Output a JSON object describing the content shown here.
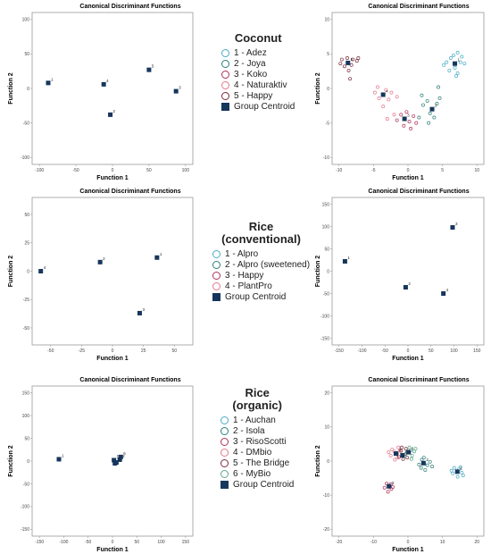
{
  "legends": [
    {
      "title": "Coconut",
      "items": [
        {
          "label": "1 - Adez",
          "color": "#4bacc6"
        },
        {
          "label": "2 - Joya",
          "color": "#2e7f7a"
        },
        {
          "label": "3 - Koko",
          "color": "#b0315a"
        },
        {
          "label": "4 - Naturaktiv",
          "color": "#e6798f"
        },
        {
          "label": "5 - Happy",
          "color": "#7a2d3c"
        }
      ],
      "centroid": "Group Centroid",
      "centroid_color": "#16365c"
    },
    {
      "title": "Rice\n(conventional)",
      "items": [
        {
          "label": "1 - Alpro",
          "color": "#4bacc6"
        },
        {
          "label": "2 - Alpro (sweetened)",
          "color": "#2e7f7a"
        },
        {
          "label": "3 - Happy",
          "color": "#b0315a"
        },
        {
          "label": "4 - PlantPro",
          "color": "#e6798f"
        }
      ],
      "centroid": "Group Centroid",
      "centroid_color": "#16365c"
    },
    {
      "title": "Rice\n(organic)",
      "items": [
        {
          "label": "1 - Auchan",
          "color": "#4bacc6"
        },
        {
          "label": "2 - Isola",
          "color": "#2e7f7a"
        },
        {
          "label": "3 - RisoScotti",
          "color": "#b0315a"
        },
        {
          "label": "4 - DMbio",
          "color": "#e6798f"
        },
        {
          "label": "5 - The Bridge",
          "color": "#7a2d3c"
        },
        {
          "label": "6 - MyBio",
          "color": "#5ba88a"
        }
      ],
      "centroid": "Group Centroid",
      "centroid_color": "#16365c"
    }
  ],
  "chart_data": [
    {
      "type": "scatter",
      "title": "Canonical Discriminant Functions",
      "xlabel": "Function 1",
      "ylabel": "Function 2",
      "xlim": [
        -110,
        110
      ],
      "ylim": [
        -110,
        110
      ],
      "xticks": [
        -100,
        -50,
        0,
        50,
        100
      ],
      "yticks": [
        -100,
        -50,
        0,
        50,
        100
      ],
      "centroids": [
        {
          "label": "1",
          "x": -88,
          "y": 8
        },
        {
          "label": "2",
          "x": -3,
          "y": -38
        },
        {
          "label": "3",
          "x": 87,
          "y": -4
        },
        {
          "label": "4",
          "x": -12,
          "y": 6
        },
        {
          "label": "5",
          "x": 50,
          "y": 27
        }
      ],
      "points": []
    },
    {
      "type": "scatter",
      "title": "Canonical Discriminant Functions",
      "xlabel": "Function 1",
      "ylabel": "Function 2",
      "xlim": [
        -11,
        11
      ],
      "ylim": [
        -11,
        11
      ],
      "xticks": [
        -10,
        -5,
        0,
        5,
        10
      ],
      "yticks": [
        -10,
        -5,
        0,
        5,
        10
      ],
      "centroids": [
        {
          "label": "1",
          "x": 6.8,
          "y": 3.6
        },
        {
          "label": "2",
          "x": 3.5,
          "y": -3.0
        },
        {
          "label": "3",
          "x": -0.5,
          "y": -4.4
        },
        {
          "label": "4",
          "x": -3.6,
          "y": -0.9
        },
        {
          "label": "5",
          "x": -8.7,
          "y": 3.7
        }
      ],
      "points": [
        {
          "group": 1,
          "x": 7.2,
          "y": 5.2
        },
        {
          "group": 1,
          "x": 6.2,
          "y": 4.4
        },
        {
          "group": 1,
          "x": 7.8,
          "y": 4.6
        },
        {
          "group": 1,
          "x": 5.6,
          "y": 3.8
        },
        {
          "group": 1,
          "x": 6.8,
          "y": 3.0
        },
        {
          "group": 1,
          "x": 7.6,
          "y": 3.8
        },
        {
          "group": 1,
          "x": 8.2,
          "y": 3.6
        },
        {
          "group": 1,
          "x": 6.0,
          "y": 2.6
        },
        {
          "group": 1,
          "x": 7.2,
          "y": 2.2
        },
        {
          "group": 1,
          "x": 6.6,
          "y": 4.8
        },
        {
          "group": 1,
          "x": 5.2,
          "y": 3.4
        },
        {
          "group": 1,
          "x": 7.0,
          "y": 1.8
        },
        {
          "group": 2,
          "x": 2.2,
          "y": -2.4
        },
        {
          "group": 2,
          "x": 3.2,
          "y": -3.6
        },
        {
          "group": 2,
          "x": 4.2,
          "y": -2.2
        },
        {
          "group": 2,
          "x": 3.8,
          "y": -4.2
        },
        {
          "group": 2,
          "x": 4.6,
          "y": -1.4
        },
        {
          "group": 2,
          "x": 2.8,
          "y": -1.8
        },
        {
          "group": 2,
          "x": 1.6,
          "y": -4.2
        },
        {
          "group": 2,
          "x": 3.0,
          "y": -5.0
        },
        {
          "group": 2,
          "x": 4.4,
          "y": 0.2
        },
        {
          "group": 2,
          "x": 2.0,
          "y": -1.0
        },
        {
          "group": 3,
          "x": -1.0,
          "y": -3.8
        },
        {
          "group": 3,
          "x": 0.2,
          "y": -4.8
        },
        {
          "group": 3,
          "x": -0.6,
          "y": -5.4
        },
        {
          "group": 3,
          "x": 0.8,
          "y": -4.0
        },
        {
          "group": 3,
          "x": -1.6,
          "y": -4.6
        },
        {
          "group": 3,
          "x": 0.4,
          "y": -5.8
        },
        {
          "group": 3,
          "x": -0.2,
          "y": -3.4
        },
        {
          "group": 3,
          "x": 1.2,
          "y": -5.0
        },
        {
          "group": 4,
          "x": -4.4,
          "y": 0.2
        },
        {
          "group": 4,
          "x": -3.2,
          "y": -0.2
        },
        {
          "group": 4,
          "x": -2.8,
          "y": -1.6
        },
        {
          "group": 4,
          "x": -4.2,
          "y": -1.4
        },
        {
          "group": 4,
          "x": -2.4,
          "y": -0.6
        },
        {
          "group": 4,
          "x": -3.6,
          "y": -2.6
        },
        {
          "group": 4,
          "x": -2.0,
          "y": -3.8
        },
        {
          "group": 4,
          "x": -3.0,
          "y": -4.4
        },
        {
          "group": 4,
          "x": -4.8,
          "y": -0.6
        },
        {
          "group": 4,
          "x": -1.6,
          "y": -1.2
        },
        {
          "group": 5,
          "x": -9.6,
          "y": 4.2
        },
        {
          "group": 5,
          "x": -8.8,
          "y": 4.4
        },
        {
          "group": 5,
          "x": -8.0,
          "y": 4.2
        },
        {
          "group": 5,
          "x": -9.2,
          "y": 3.2
        },
        {
          "group": 5,
          "x": -8.2,
          "y": 3.4
        },
        {
          "group": 5,
          "x": -7.4,
          "y": 4.0
        },
        {
          "group": 5,
          "x": -8.6,
          "y": 2.6
        },
        {
          "group": 5,
          "x": -9.8,
          "y": 3.6
        },
        {
          "group": 5,
          "x": -7.2,
          "y": 4.4
        },
        {
          "group": 5,
          "x": -8.4,
          "y": 1.4
        }
      ]
    },
    {
      "type": "scatter",
      "title": "Canonical Discriminant Functions",
      "xlabel": "Function 1",
      "ylabel": "Function 2",
      "xlim": [
        -65,
        65
      ],
      "ylim": [
        -65,
        65
      ],
      "xticks": [
        -50,
        -25,
        0,
        25,
        50
      ],
      "yticks": [
        -50,
        -25,
        0,
        25,
        50
      ],
      "centroids": [
        {
          "label": "1",
          "x": 36,
          "y": 12
        },
        {
          "label": "2",
          "x": -10,
          "y": 8
        },
        {
          "label": "3",
          "x": 22,
          "y": -37
        },
        {
          "label": "4",
          "x": -58,
          "y": 0
        }
      ],
      "points": []
    },
    {
      "type": "scatter",
      "title": "Canonical Discriminant Functions",
      "xlabel": "Function 1",
      "ylabel": "Function 2",
      "xlim": [
        -165,
        165
      ],
      "ylim": [
        -165,
        165
      ],
      "xticks": [
        -150,
        -100,
        -50,
        0,
        50,
        100,
        150
      ],
      "yticks": [
        -150,
        -100,
        -50,
        0,
        50,
        100,
        150
      ],
      "centroids": [
        {
          "label": "1",
          "x": -137,
          "y": 22
        },
        {
          "label": "2",
          "x": -5,
          "y": -36
        },
        {
          "label": "3",
          "x": 97,
          "y": 98
        },
        {
          "label": "4",
          "x": 77,
          "y": -50
        }
      ],
      "points": []
    },
    {
      "type": "scatter",
      "title": "Canonical Discriminant Functions",
      "xlabel": "Function 1",
      "ylabel": "Function 2",
      "xlim": [
        -165,
        165
      ],
      "ylim": [
        -165,
        165
      ],
      "xticks": [
        -150,
        -100,
        -50,
        0,
        50,
        100,
        150
      ],
      "yticks": [
        -150,
        -100,
        -50,
        0,
        50,
        100,
        150
      ],
      "centroids": [
        {
          "label": "1",
          "x": -110,
          "y": 4
        },
        {
          "label": "2",
          "x": 15,
          "y": 3
        },
        {
          "label": "3",
          "x": 5,
          "y": -5
        },
        {
          "label": "4",
          "x": 8,
          "y": -3
        },
        {
          "label": "5",
          "x": 3,
          "y": 2
        },
        {
          "label": "6",
          "x": 17,
          "y": 9
        }
      ],
      "points": []
    },
    {
      "type": "scatter",
      "title": "Canonical Discriminant Functions",
      "xlabel": "Function 1",
      "ylabel": "Function 2",
      "xlim": [
        -22,
        22
      ],
      "ylim": [
        -22,
        22
      ],
      "xticks": [
        -20,
        -10,
        0,
        10,
        20
      ],
      "yticks": [
        -20,
        -10,
        0,
        10,
        20
      ],
      "centroids": [
        {
          "label": "1",
          "x": 14.3,
          "y": -3.1
        },
        {
          "label": "2",
          "x": 4.5,
          "y": -0.6
        },
        {
          "label": "3",
          "x": -5.5,
          "y": -7.4
        },
        {
          "label": "4",
          "x": -3.5,
          "y": 2.2
        },
        {
          "label": "5",
          "x": -1.6,
          "y": 1.7
        },
        {
          "label": "6",
          "x": 0.2,
          "y": 2.6
        }
      ],
      "points": [
        {
          "group": 1,
          "x": 13.4,
          "y": -2.0
        },
        {
          "group": 1,
          "x": 14.8,
          "y": -2.4
        },
        {
          "group": 1,
          "x": 15.6,
          "y": -3.4
        },
        {
          "group": 1,
          "x": 13.0,
          "y": -3.6
        },
        {
          "group": 1,
          "x": 14.4,
          "y": -4.6
        },
        {
          "group": 1,
          "x": 15.2,
          "y": -1.8
        },
        {
          "group": 1,
          "x": 12.6,
          "y": -2.8
        },
        {
          "group": 1,
          "x": 16.0,
          "y": -4.2
        },
        {
          "group": 2,
          "x": 4.0,
          "y": 0.4
        },
        {
          "group": 2,
          "x": 5.6,
          "y": -1.2
        },
        {
          "group": 2,
          "x": 3.8,
          "y": -2.0
        },
        {
          "group": 2,
          "x": 6.4,
          "y": -0.2
        },
        {
          "group": 2,
          "x": 5.0,
          "y": -2.6
        },
        {
          "group": 2,
          "x": 3.2,
          "y": -1.0
        },
        {
          "group": 2,
          "x": 7.0,
          "y": -1.6
        },
        {
          "group": 2,
          "x": 4.6,
          "y": 1.0
        },
        {
          "group": 3,
          "x": -6.2,
          "y": -6.6
        },
        {
          "group": 3,
          "x": -4.8,
          "y": -8.2
        },
        {
          "group": 3,
          "x": -5.8,
          "y": -9.0
        },
        {
          "group": 3,
          "x": -6.8,
          "y": -7.8
        },
        {
          "group": 3,
          "x": -5.0,
          "y": -6.8
        },
        {
          "group": 3,
          "x": -4.4,
          "y": -7.6
        },
        {
          "group": 4,
          "x": -4.6,
          "y": 3.4
        },
        {
          "group": 4,
          "x": -3.0,
          "y": 1.0
        },
        {
          "group": 4,
          "x": -5.0,
          "y": 1.6
        },
        {
          "group": 4,
          "x": -2.4,
          "y": 3.0
        },
        {
          "group": 4,
          "x": -3.8,
          "y": 0.4
        },
        {
          "group": 4,
          "x": -5.6,
          "y": 2.6
        },
        {
          "group": 4,
          "x": -2.8,
          "y": 4.0
        },
        {
          "group": 4,
          "x": -4.0,
          "y": 2.8
        },
        {
          "group": 5,
          "x": -2.0,
          "y": 3.0
        },
        {
          "group": 5,
          "x": -0.8,
          "y": 2.0
        },
        {
          "group": 5,
          "x": -1.4,
          "y": 0.6
        },
        {
          "group": 5,
          "x": -2.6,
          "y": 1.2
        },
        {
          "group": 5,
          "x": -0.6,
          "y": 3.6
        },
        {
          "group": 5,
          "x": -1.8,
          "y": 4.0
        },
        {
          "group": 5,
          "x": -3.2,
          "y": 2.2
        },
        {
          "group": 5,
          "x": -0.2,
          "y": 1.0
        },
        {
          "group": 6,
          "x": 0.8,
          "y": 3.2
        },
        {
          "group": 6,
          "x": -0.4,
          "y": 2.4
        },
        {
          "group": 6,
          "x": 1.2,
          "y": 1.6
        },
        {
          "group": 6,
          "x": 0.4,
          "y": 4.0
        },
        {
          "group": 6,
          "x": 1.8,
          "y": 2.8
        },
        {
          "group": 6,
          "x": -0.8,
          "y": 1.4
        },
        {
          "group": 6,
          "x": 1.0,
          "y": 0.6
        },
        {
          "group": 6,
          "x": 2.2,
          "y": 3.6
        }
      ]
    }
  ]
}
